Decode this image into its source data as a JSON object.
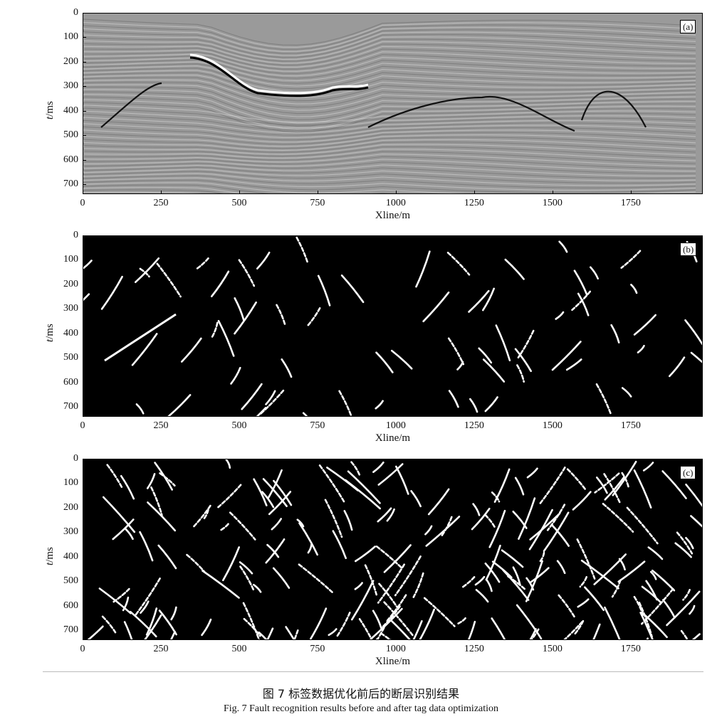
{
  "figure": {
    "panels": [
      {
        "id": "a",
        "tag": "(a)",
        "kind": "seismic"
      },
      {
        "id": "b",
        "tag": "(b)",
        "kind": "faults-sparse"
      },
      {
        "id": "c",
        "tag": "(c)",
        "kind": "faults-dense"
      }
    ],
    "y_ticks": [
      "0",
      "100",
      "200",
      "300",
      "400",
      "500",
      "600",
      "700"
    ],
    "x_ticks": [
      "0",
      "250",
      "500",
      "750",
      "1000",
      "1250",
      "1500",
      "1750"
    ],
    "y_axis_label_var": "t",
    "y_axis_label_unit": "/ms",
    "x_axis_label": "Xline/m",
    "caption_cn": "图 7    标签数据优化前后的断层识别结果",
    "caption_en": "Fig. 7    Fault recognition results before and after tag data optimization",
    "colors": {
      "seismic_bg": "#9a9a9a",
      "fault_bg": "#000000",
      "fault_line": "#ffffff"
    }
  },
  "chart_data": [
    {
      "type": "heatmap",
      "title": "(a)",
      "xlabel": "Xline/m",
      "ylabel": "t/ms",
      "xlim": [
        0,
        1980
      ],
      "ylim": [
        740,
        0
      ],
      "x_ticks": [
        0,
        250,
        500,
        750,
        1000,
        1250,
        1500,
        1750
      ],
      "y_ticks": [
        0,
        100,
        200,
        300,
        400,
        500,
        600,
        700
      ]
    },
    {
      "type": "heatmap",
      "title": "(b)",
      "xlabel": "Xline/m",
      "ylabel": "t/ms",
      "xlim": [
        0,
        1980
      ],
      "ylim": [
        740,
        0
      ],
      "x_ticks": [
        0,
        250,
        500,
        750,
        1000,
        1250,
        1500,
        1750
      ],
      "y_ticks": [
        0,
        100,
        200,
        300,
        400,
        500,
        600,
        700
      ]
    },
    {
      "type": "heatmap",
      "title": "(c)",
      "xlabel": "Xline/m",
      "ylabel": "t/ms",
      "xlim": [
        0,
        1980
      ],
      "ylim": [
        740,
        0
      ],
      "x_ticks": [
        0,
        250,
        500,
        750,
        1000,
        1250,
        1500,
        1750
      ],
      "y_ticks": [
        0,
        100,
        200,
        300,
        400,
        500,
        600,
        700
      ]
    }
  ]
}
